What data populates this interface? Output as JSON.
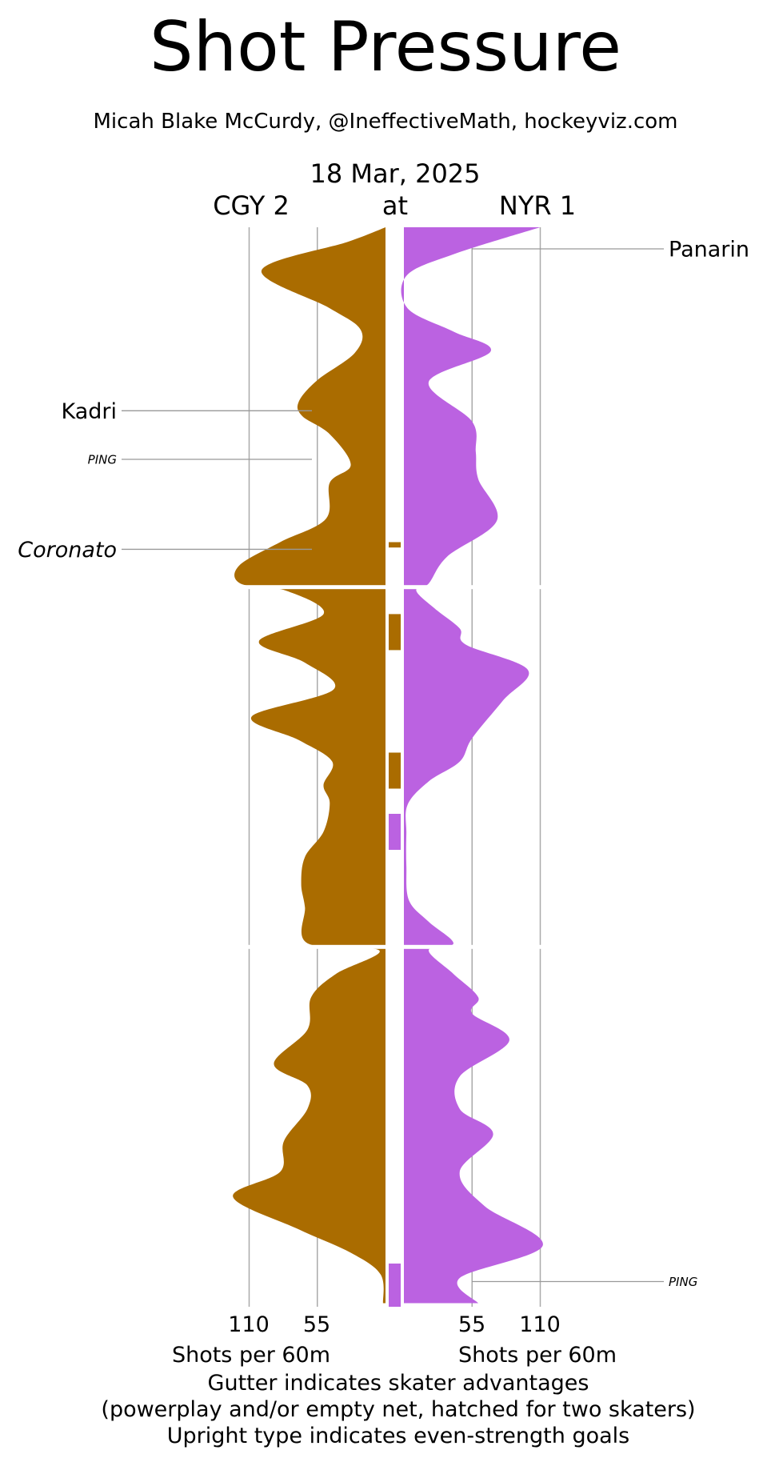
{
  "title": "Shot Pressure",
  "byline": "Micah Blake McCurdy, @IneffectiveMath, hockeyviz.com",
  "date": "18 Mar, 2025",
  "away": {
    "label": "CGY 2",
    "color": "#aa6c00"
  },
  "at_label": "at",
  "home": {
    "label": "NYR 1",
    "color": "#bb62e1"
  },
  "axis": {
    "left_ticks": [
      "110",
      "55"
    ],
    "right_ticks": [
      "55",
      "110"
    ],
    "left_label": "Shots per 60m",
    "right_label": "Shots per 60m"
  },
  "footnotes": [
    "Gutter indicates skater advantages",
    "(powerplay and/or empty net, hatched for two skaters)",
    "Upright type indicates even-strength goals"
  ],
  "chart_data": {
    "type": "area",
    "orientation": "vertical",
    "x_unit": "game minutes",
    "x_range": [
      0,
      60
    ],
    "value_unit": "Shots per 60m",
    "period_breaks": [
      20,
      40
    ],
    "ticks": [
      55,
      110
    ],
    "series": [
      {
        "name": "CGY 2",
        "side": "left",
        "color": "#aa6c00",
        "points": [
          [
            0,
            0
          ],
          [
            0.8,
            30
          ],
          [
            2.4,
            100
          ],
          [
            4.5,
            45
          ],
          [
            5.7,
            20
          ],
          [
            7.0,
            25
          ],
          [
            8.5,
            55
          ],
          [
            9.7,
            70
          ],
          [
            10.5,
            67
          ],
          [
            11.5,
            45
          ],
          [
            13.2,
            28
          ],
          [
            14.2,
            45
          ],
          [
            16.2,
            48
          ],
          [
            17.5,
            85
          ],
          [
            18.8,
            118
          ],
          [
            19.8,
            117
          ],
          [
            20.2,
            80
          ],
          [
            21.5,
            50
          ],
          [
            23.0,
            102
          ],
          [
            24.2,
            65
          ],
          [
            25.7,
            42
          ],
          [
            27.2,
            108
          ],
          [
            28.5,
            70
          ],
          [
            29.7,
            43
          ],
          [
            31.0,
            50
          ],
          [
            32.0,
            45
          ],
          [
            33.6,
            50
          ],
          [
            35.0,
            65
          ],
          [
            36.5,
            68
          ],
          [
            37.8,
            65
          ],
          [
            39.8,
            63
          ],
          [
            40.2,
            5
          ],
          [
            41.5,
            40
          ],
          [
            42.8,
            60
          ],
          [
            44.6,
            63
          ],
          [
            46.5,
            90
          ],
          [
            47.7,
            63
          ],
          [
            49.0,
            63
          ],
          [
            50.8,
            82
          ],
          [
            52.5,
            85
          ],
          [
            53.9,
            123
          ],
          [
            55.7,
            70
          ],
          [
            57.0,
            28
          ],
          [
            58.2,
            4
          ],
          [
            59.8,
            2
          ]
        ]
      },
      {
        "name": "NYR 1",
        "side": "right",
        "color": "#bb62e1",
        "points": [
          [
            0,
            110
          ],
          [
            1.5,
            40
          ],
          [
            2.7,
            2
          ],
          [
            4.5,
            3
          ],
          [
            5.8,
            40
          ],
          [
            6.9,
            70
          ],
          [
            8.6,
            20
          ],
          [
            10.8,
            55
          ],
          [
            12.5,
            58
          ],
          [
            14.0,
            60
          ],
          [
            16.3,
            75
          ],
          [
            18.3,
            35
          ],
          [
            19.8,
            20
          ],
          [
            20.2,
            10
          ],
          [
            21.2,
            25
          ],
          [
            22.3,
            45
          ],
          [
            23.2,
            50
          ],
          [
            24.6,
            100
          ],
          [
            26.3,
            80
          ],
          [
            28.4,
            55
          ],
          [
            29.7,
            45
          ],
          [
            30.8,
            20
          ],
          [
            32.1,
            3
          ],
          [
            33.7,
            2
          ],
          [
            35.5,
            2
          ],
          [
            37.4,
            4
          ],
          [
            38.6,
            20
          ],
          [
            39.8,
            40
          ],
          [
            40.2,
            20
          ],
          [
            41.5,
            40
          ],
          [
            42.8,
            60
          ],
          [
            43.7,
            55
          ],
          [
            45.2,
            85
          ],
          [
            47.2,
            45
          ],
          [
            49.0,
            45
          ],
          [
            50.4,
            72
          ],
          [
            52.5,
            45
          ],
          [
            54.4,
            65
          ],
          [
            56.6,
            112
          ],
          [
            58.4,
            45
          ],
          [
            59.8,
            60
          ]
        ]
      }
    ],
    "gutter_advantages": [
      {
        "team": "CGY 2",
        "start": 17.5,
        "end": 17.8
      },
      {
        "team": "CGY 2",
        "start": 21.5,
        "end": 23.5
      },
      {
        "team": "CGY 2",
        "start": 29.2,
        "end": 31.2
      },
      {
        "team": "NYR 1",
        "start": 32.6,
        "end": 34.6
      },
      {
        "team": "NYR 1",
        "start": 57.6,
        "end": 60.0
      }
    ],
    "goals": [
      {
        "label": "Panarin",
        "team": "NYR 1",
        "minute": 1.2,
        "strength": "even",
        "style": "upright"
      },
      {
        "label": "Kadri",
        "team": "CGY 2",
        "minute": 10.2,
        "strength": "even",
        "style": "upright"
      },
      {
        "label": "PING",
        "team": "CGY 2",
        "minute": 12.9,
        "strength": "ping",
        "style": "small-italic"
      },
      {
        "label": "Coronato",
        "team": "CGY 2",
        "minute": 17.9,
        "strength": "non-even",
        "style": "italic"
      },
      {
        "label": "PING",
        "team": "NYR 1",
        "minute": 58.6,
        "strength": "ping",
        "style": "small-italic"
      }
    ]
  }
}
